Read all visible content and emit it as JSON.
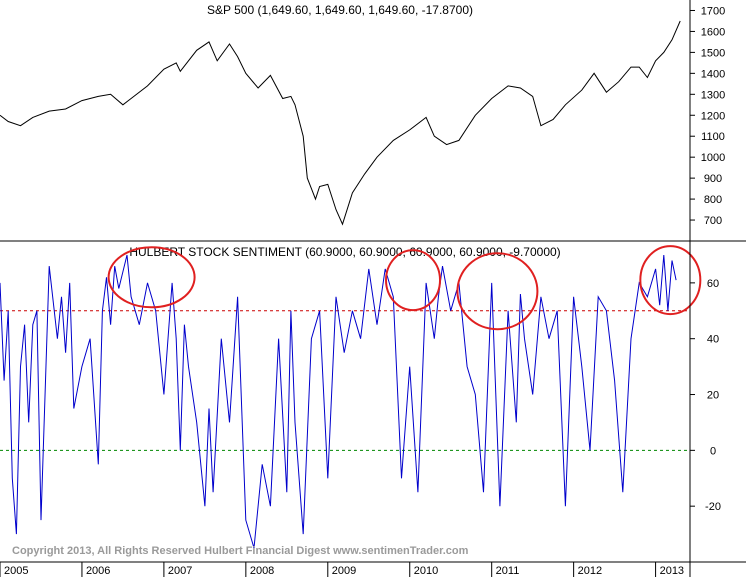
{
  "copyright": "Copyright 2013, All Rights Reserved  Hulbert Financial Digest  www.sentimenTrader.com",
  "colors": {
    "sp500_line": "#000000",
    "sentiment_line": "#0000cc",
    "upper_ref": "#cc0000",
    "lower_ref": "#008800",
    "circle": "#e02020"
  },
  "x_axis": {
    "labels": [
      "2005",
      "2006",
      "2007",
      "2008",
      "2009",
      "2010",
      "2011",
      "2012",
      "2013"
    ]
  },
  "chart_data": [
    {
      "type": "line",
      "title": "S&P 500 (1,649.60, 1,649.60, 1,649.60, -17.8700)",
      "xlabel": "",
      "ylabel": "",
      "ylim": [
        600,
        1750
      ],
      "yticks": [
        700,
        800,
        900,
        1000,
        1100,
        1200,
        1300,
        1400,
        1500,
        1600,
        1700
      ],
      "grid": false,
      "series": [
        {
          "x": [
            2005.0,
            2005.1,
            2005.25,
            2005.4,
            2005.6,
            2005.8,
            2006.0,
            2006.2,
            2006.35,
            2006.5,
            2006.6,
            2006.8,
            2007.0,
            2007.15,
            2007.2,
            2007.4,
            2007.55,
            2007.65,
            2007.8,
            2007.9,
            2008.0,
            2008.15,
            2008.3,
            2008.45,
            2008.55,
            2008.6,
            2008.7,
            2008.75,
            2008.8,
            2008.85,
            2008.9,
            2009.0,
            2009.1,
            2009.18,
            2009.3,
            2009.45,
            2009.6,
            2009.8,
            2010.0,
            2010.2,
            2010.3,
            2010.45,
            2010.6,
            2010.8,
            2011.0,
            2011.2,
            2011.35,
            2011.5,
            2011.6,
            2011.75,
            2011.9,
            2012.1,
            2012.25,
            2012.4,
            2012.55,
            2012.7,
            2012.8,
            2012.9,
            2013.0,
            2013.1,
            2013.2,
            2013.3
          ],
          "values": [
            1200,
            1170,
            1150,
            1190,
            1220,
            1230,
            1270,
            1290,
            1300,
            1250,
            1280,
            1340,
            1420,
            1450,
            1410,
            1510,
            1550,
            1460,
            1540,
            1480,
            1400,
            1330,
            1390,
            1280,
            1290,
            1250,
            1100,
            900,
            850,
            800,
            860,
            870,
            750,
            680,
            830,
            920,
            1000,
            1080,
            1130,
            1190,
            1100,
            1060,
            1080,
            1200,
            1280,
            1340,
            1330,
            1290,
            1150,
            1180,
            1250,
            1320,
            1400,
            1310,
            1360,
            1430,
            1430,
            1380,
            1460,
            1500,
            1560,
            1650
          ]
        }
      ]
    },
    {
      "type": "line",
      "title": "HULBERT STOCK SENTIMENT (60.9000, 60.9000, 60.9000, 60.9000, -9.70000)",
      "xlabel": "",
      "ylabel": "",
      "ylim": [
        -40,
        75
      ],
      "yticks": [
        -20,
        0,
        20,
        40,
        60
      ],
      "reference_lines": [
        50,
        0
      ],
      "grid": false,
      "series": [
        {
          "x": [
            2005.0,
            2005.05,
            2005.1,
            2005.15,
            2005.2,
            2005.25,
            2005.3,
            2005.35,
            2005.4,
            2005.45,
            2005.5,
            2005.6,
            2005.7,
            2005.75,
            2005.8,
            2005.85,
            2005.9,
            2006.0,
            2006.1,
            2006.2,
            2006.25,
            2006.3,
            2006.35,
            2006.4,
            2006.45,
            2006.55,
            2006.6,
            2006.7,
            2006.8,
            2006.9,
            2007.0,
            2007.1,
            2007.15,
            2007.2,
            2007.25,
            2007.3,
            2007.4,
            2007.5,
            2007.55,
            2007.6,
            2007.7,
            2007.8,
            2007.9,
            2008.0,
            2008.1,
            2008.2,
            2008.3,
            2008.4,
            2008.5,
            2008.55,
            2008.6,
            2008.7,
            2008.8,
            2008.9,
            2009.0,
            2009.1,
            2009.2,
            2009.3,
            2009.4,
            2009.5,
            2009.6,
            2009.7,
            2009.8,
            2009.9,
            2010.0,
            2010.1,
            2010.2,
            2010.3,
            2010.35,
            2010.4,
            2010.5,
            2010.6,
            2010.7,
            2010.8,
            2010.9,
            2011.0,
            2011.1,
            2011.2,
            2011.3,
            2011.35,
            2011.4,
            2011.5,
            2011.6,
            2011.7,
            2011.8,
            2011.9,
            2012.0,
            2012.1,
            2012.2,
            2012.3,
            2012.4,
            2012.5,
            2012.6,
            2012.7,
            2012.8,
            2012.9,
            2013.0,
            2013.05,
            2013.1,
            2013.15,
            2013.2,
            2013.25
          ],
          "values": [
            60,
            25,
            50,
            -10,
            -30,
            30,
            45,
            10,
            45,
            50,
            -25,
            66,
            40,
            55,
            35,
            60,
            15,
            30,
            40,
            -5,
            50,
            62,
            45,
            66,
            58,
            70,
            55,
            45,
            60,
            50,
            20,
            60,
            40,
            0,
            45,
            30,
            10,
            -20,
            15,
            -15,
            40,
            10,
            55,
            -25,
            -35,
            -5,
            -20,
            40,
            -15,
            50,
            10,
            -30,
            40,
            50,
            -10,
            55,
            35,
            50,
            40,
            65,
            45,
            65,
            55,
            -10,
            30,
            -15,
            60,
            40,
            55,
            66,
            50,
            60,
            30,
            20,
            -15,
            60,
            -20,
            50,
            10,
            56,
            40,
            20,
            55,
            40,
            50,
            -20,
            55,
            30,
            0,
            55,
            50,
            25,
            -15,
            40,
            60,
            55,
            65,
            52,
            70,
            50,
            68,
            61
          ]
        }
      ]
    }
  ]
}
